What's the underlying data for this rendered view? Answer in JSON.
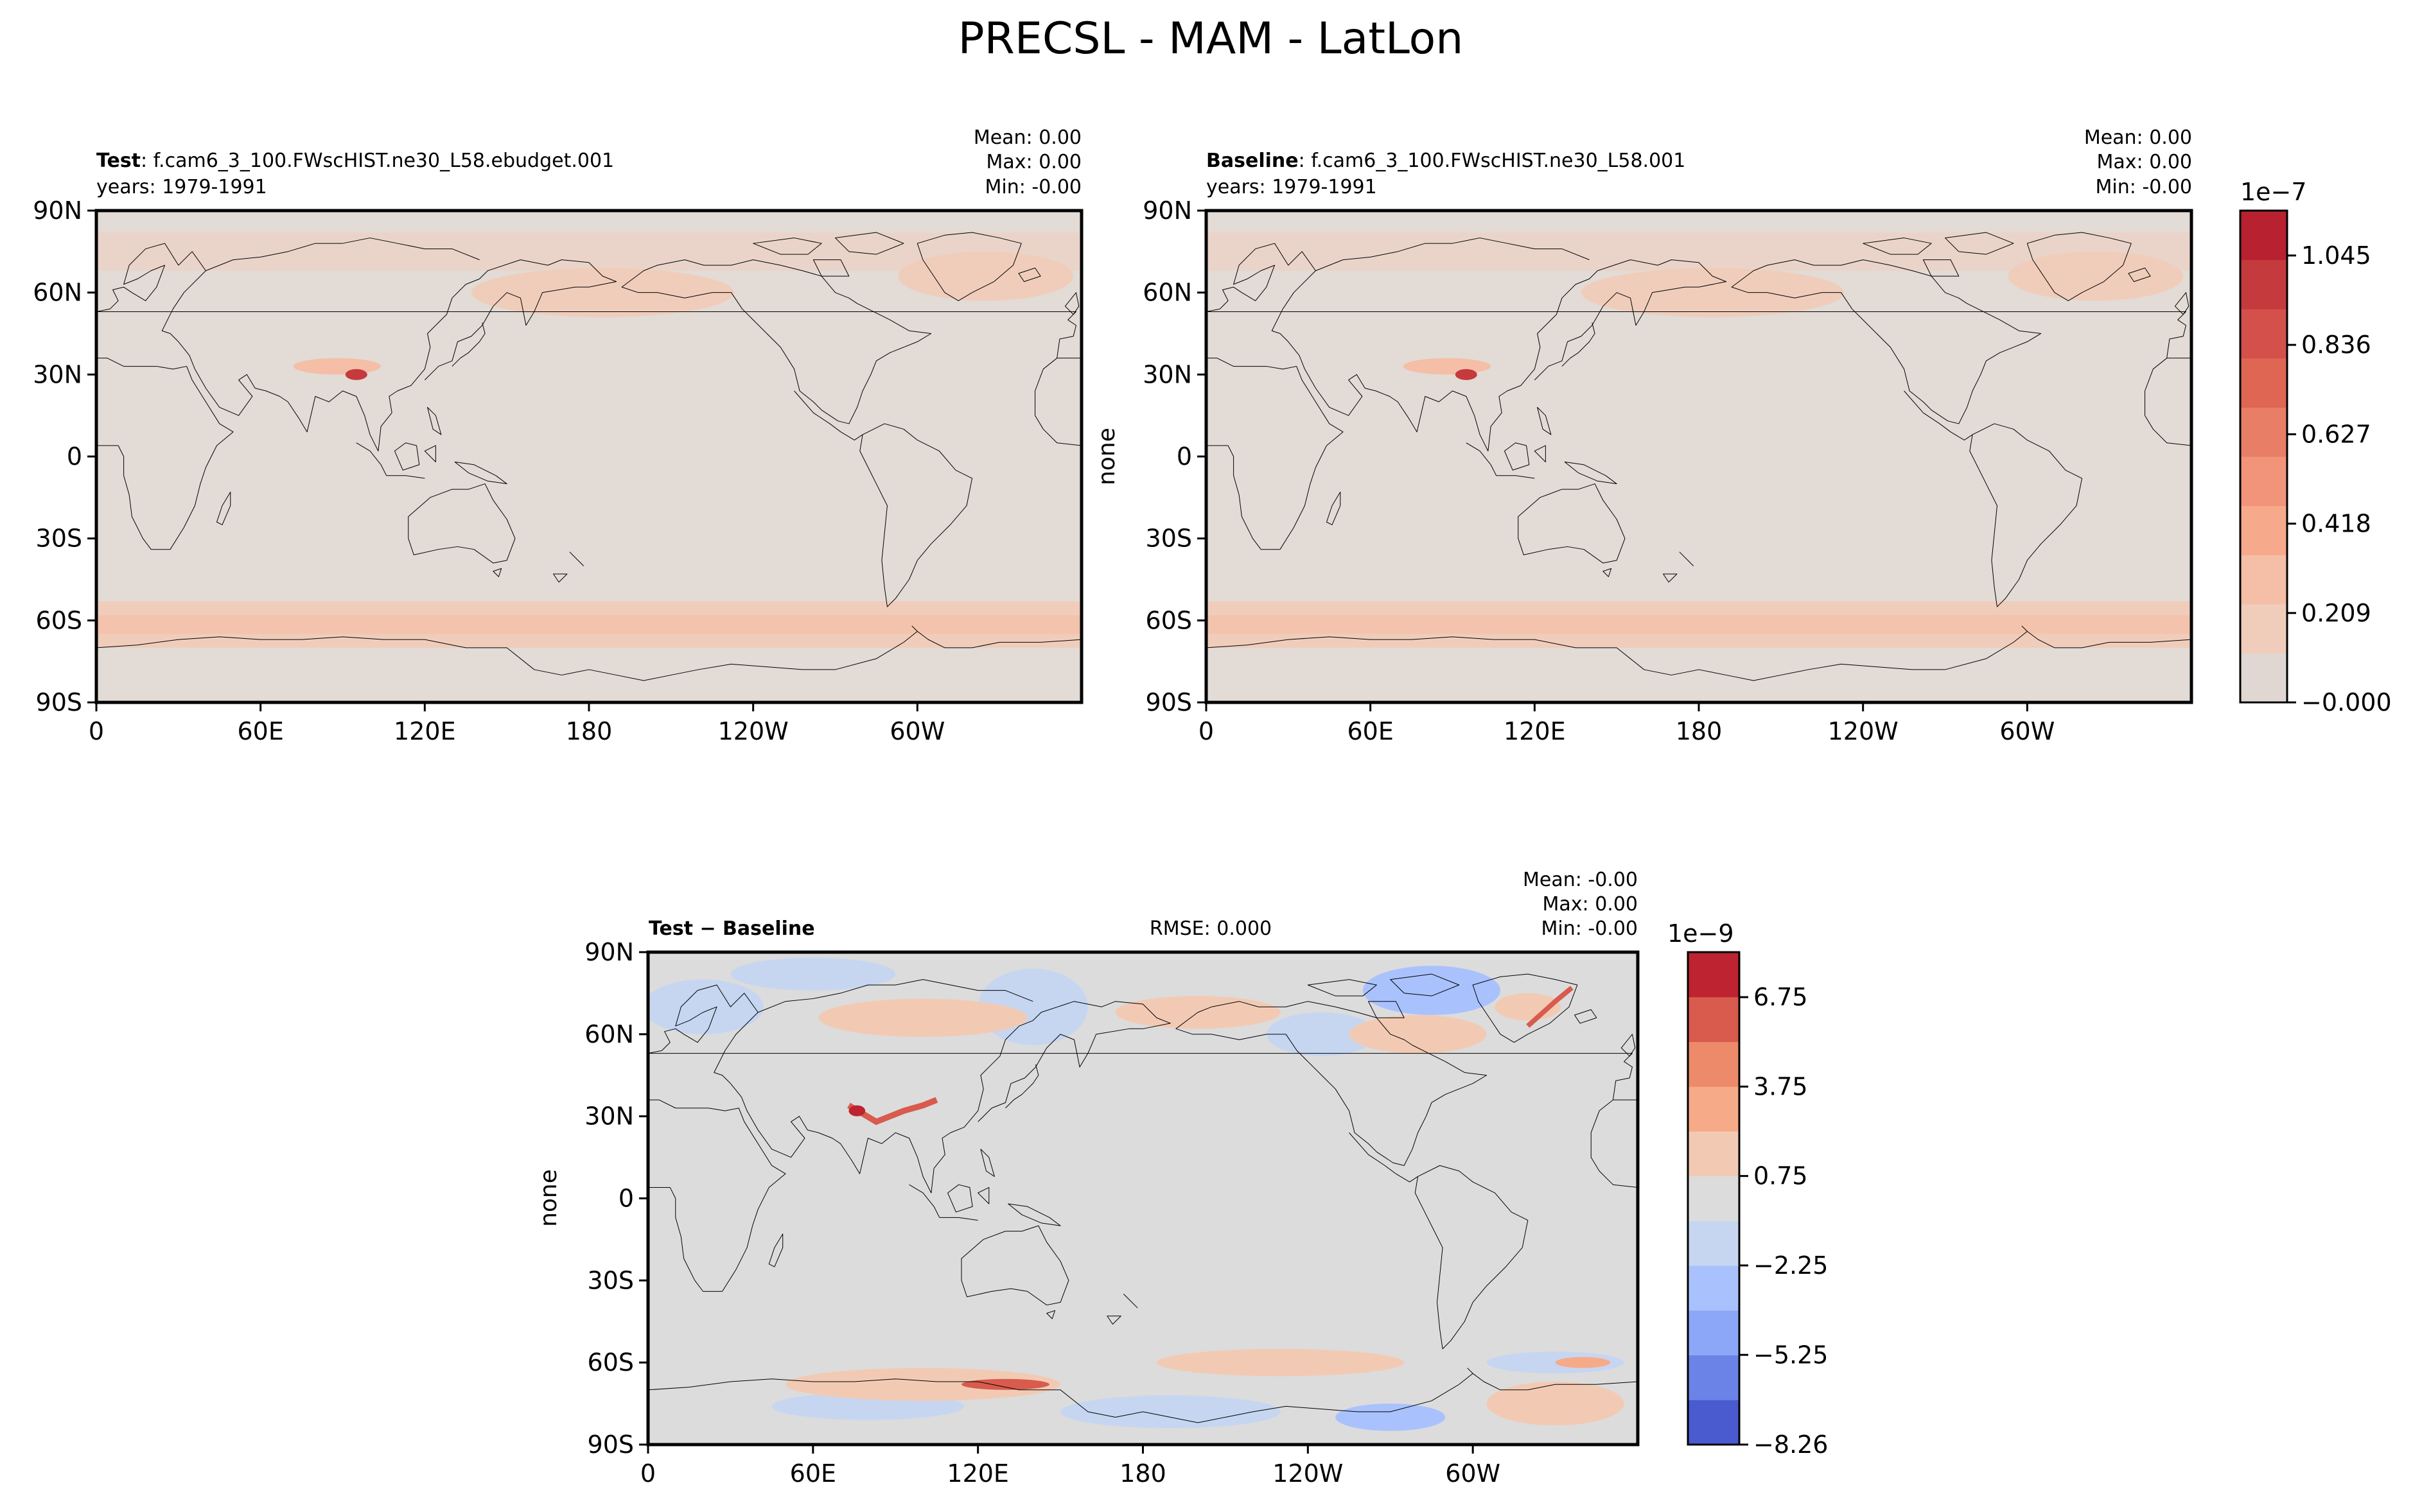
{
  "suptitle": "PRECSL - MAM - LatLon",
  "colors": {
    "background_test": "#e2dbd6",
    "background_diff": "#dddddd",
    "coast": "#000000",
    "seq_levels": [
      "#e1d7d2",
      "#f0cdbb",
      "#f4bfa6",
      "#f6a98b",
      "#f1947a",
      "#e97e66",
      "#de6653",
      "#d4504a",
      "#c53a3d",
      "#b8212f"
    ],
    "div_levels": [
      "#4a5bd0",
      "#6b83e6",
      "#8ca7f7",
      "#a9c2fd",
      "#c6d6f1",
      "#dcdcdc",
      "#f2cab4",
      "#f7aa88",
      "#ec8a6a",
      "#d85b4d",
      "#bd2330"
    ]
  },
  "panels": {
    "test": {
      "label": "Test",
      "case": ": f.cam6_3_100.FWscHIST.ne30_L58.ebudget.001",
      "years": "years: 1979-1991",
      "stats": [
        "Mean:  0.00",
        "Max:  0.00",
        "Min: -0.00"
      ]
    },
    "baseline": {
      "label": "Baseline",
      "case": ": f.cam6_3_100.FWscHIST.ne30_L58.001",
      "years": "years: 1979-1991",
      "stats": [
        "Mean:  0.00",
        "Max:  0.00",
        "Min: -0.00"
      ],
      "ylabel": "none"
    },
    "diff": {
      "label": "Test − Baseline",
      "rmse": "RMSE: 0.000",
      "stats": [
        "Mean: -0.00",
        "Max:  0.00",
        "Min: -0.00"
      ],
      "ylabel": "none"
    }
  },
  "chart_data": [
    {
      "type": "heatmap",
      "title": "Test",
      "x_ticks": [
        "0",
        "60E",
        "120E",
        "180",
        "120W",
        "60W"
      ],
      "y_ticks": [
        "90N",
        "60N",
        "30N",
        "0",
        "30S",
        "60S",
        "90S"
      ],
      "xlim": [
        0,
        360
      ],
      "ylim": [
        -90,
        90
      ]
    },
    {
      "type": "heatmap",
      "title": "Baseline",
      "ylabel": "none",
      "x_ticks": [
        "0",
        "60E",
        "120E",
        "180",
        "120W",
        "60W"
      ],
      "y_ticks": [
        "90N",
        "60N",
        "30N",
        "0",
        "30S",
        "60S",
        "90S"
      ],
      "xlim": [
        0,
        360
      ],
      "ylim": [
        -90,
        90
      ],
      "colorbar": {
        "exponent": "1e−7",
        "ticks": [
          "−0.000",
          "0.209",
          "0.418",
          "0.627",
          "0.836",
          "1.045"
        ],
        "tick_values": [
          0.0,
          0.209,
          0.418,
          0.627,
          0.836,
          1.045
        ],
        "range": [
          0.0,
          1.15
        ]
      }
    },
    {
      "type": "heatmap",
      "title": "Test − Baseline",
      "ylabel": "none",
      "x_ticks": [
        "0",
        "60E",
        "120E",
        "180",
        "120W",
        "60W"
      ],
      "y_ticks": [
        "90N",
        "60N",
        "30N",
        "0",
        "30S",
        "60S",
        "90S"
      ],
      "xlim": [
        0,
        360
      ],
      "ylim": [
        -90,
        90
      ],
      "colorbar": {
        "exponent": "1e−9",
        "ticks": [
          "−8.26",
          "−5.25",
          "−2.25",
          "0.75",
          "3.75",
          "6.75"
        ],
        "tick_values": [
          -8.26,
          -5.25,
          -2.25,
          0.75,
          3.75,
          6.75
        ],
        "range": [
          -8.26,
          8.26
        ]
      }
    }
  ]
}
